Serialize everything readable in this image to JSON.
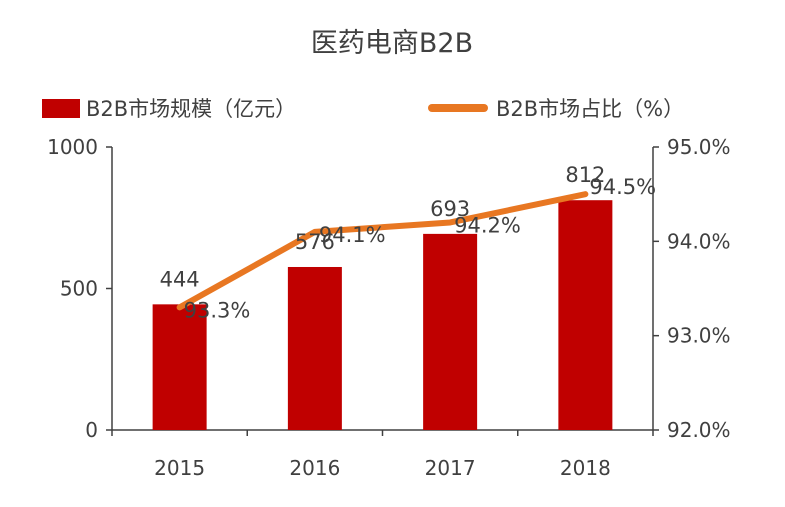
{
  "chart_data": {
    "type": "bar",
    "title": "医药电商B2B",
    "categories": [
      "2015",
      "2016",
      "2017",
      "2018"
    ],
    "series": [
      {
        "name": "B2B市场规模（亿元）",
        "type": "bar",
        "axis": "left",
        "color": "#C00000",
        "values": [
          444,
          576,
          693,
          812
        ],
        "labels": [
          "444",
          "576",
          "693",
          "812"
        ]
      },
      {
        "name": "B2B市场占比（%）",
        "type": "line",
        "axis": "right",
        "color": "#E87722",
        "values": [
          93.3,
          94.1,
          94.2,
          94.5
        ],
        "labels": [
          "93.3%",
          "94.1%",
          "94.2%",
          "94.5%"
        ]
      }
    ],
    "y_left": {
      "ylim": [
        0,
        1000
      ],
      "ticks": [
        "0",
        "500",
        "1000"
      ],
      "tick_values": [
        0,
        500,
        1000
      ]
    },
    "y_right": {
      "ylim": [
        92.0,
        95.0
      ],
      "ticks": [
        "92.0%",
        "93.0%",
        "94.0%",
        "95.0%"
      ],
      "tick_values": [
        92,
        93,
        94,
        95
      ]
    },
    "grid": false,
    "legend_position": "top"
  }
}
